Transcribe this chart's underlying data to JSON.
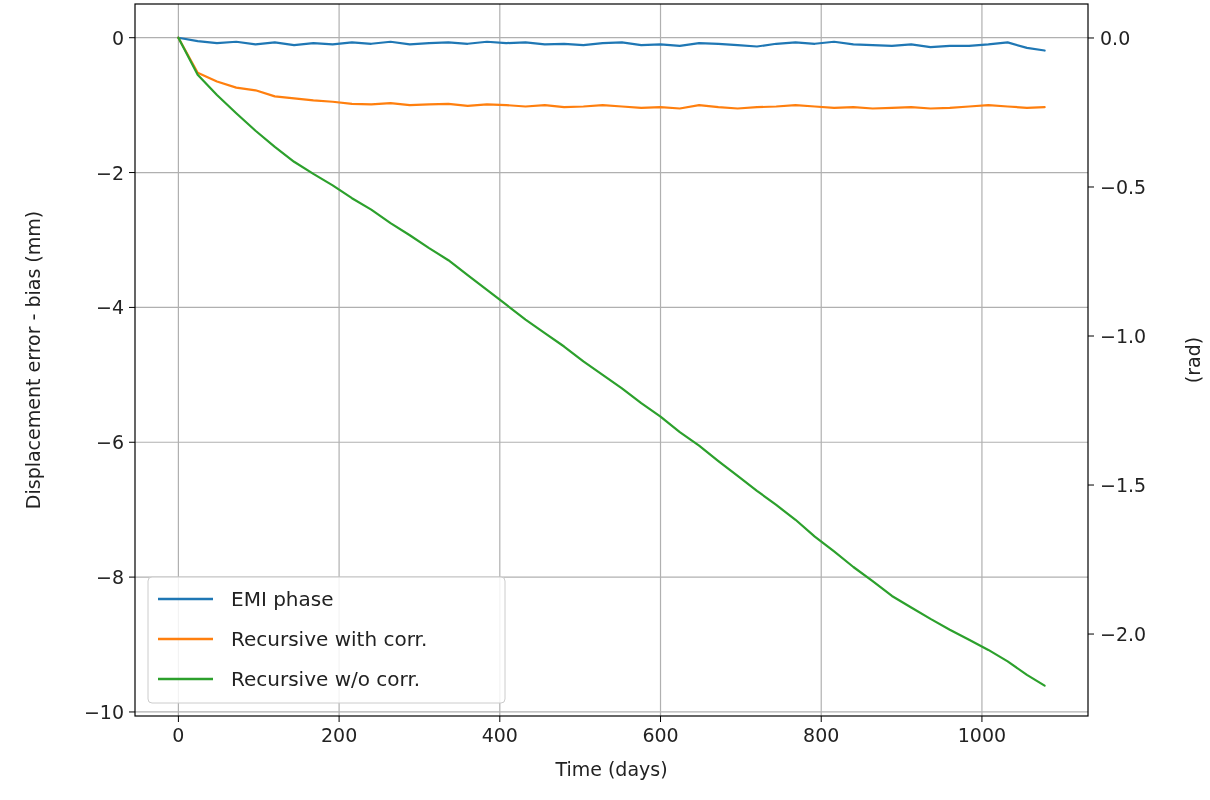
{
  "chart_data": {
    "type": "line",
    "xlabel": "Time (days)",
    "ylabel": "Displacement error - bias (mm)",
    "y2label": "(rad)",
    "x": [
      0,
      24,
      48,
      72,
      96,
      120,
      144,
      168,
      192,
      216,
      240,
      264,
      288,
      312,
      336,
      360,
      384,
      408,
      432,
      456,
      480,
      504,
      528,
      552,
      576,
      600,
      624,
      648,
      672,
      696,
      720,
      744,
      768,
      792,
      816,
      840,
      864,
      888,
      912,
      936,
      960,
      984,
      1008,
      1032,
      1056,
      1078
    ],
    "series": [
      {
        "name": "EMI phase",
        "color": "#1f77b4",
        "values": [
          0,
          -0.05,
          -0.08,
          -0.06,
          -0.1,
          -0.07,
          -0.11,
          -0.08,
          -0.1,
          -0.07,
          -0.09,
          -0.06,
          -0.1,
          -0.08,
          -0.07,
          -0.09,
          -0.06,
          -0.08,
          -0.07,
          -0.1,
          -0.09,
          -0.11,
          -0.08,
          -0.07,
          -0.11,
          -0.1,
          -0.12,
          -0.08,
          -0.09,
          -0.11,
          -0.13,
          -0.09,
          -0.07,
          -0.09,
          -0.06,
          -0.1,
          -0.11,
          -0.12,
          -0.1,
          -0.14,
          -0.12,
          -0.12,
          -0.1,
          -0.07,
          -0.15,
          -0.19
        ]
      },
      {
        "name": "Recursive with corr.",
        "color": "#ff7f0e",
        "values": [
          0,
          -0.52,
          -0.65,
          -0.74,
          -0.78,
          -0.87,
          -0.9,
          -0.93,
          -0.95,
          -0.98,
          -0.99,
          -0.97,
          -1.0,
          -0.99,
          -0.98,
          -1.01,
          -0.99,
          -1.0,
          -1.02,
          -1.0,
          -1.03,
          -1.02,
          -1.0,
          -1.02,
          -1.04,
          -1.03,
          -1.05,
          -1.0,
          -1.03,
          -1.05,
          -1.03,
          -1.02,
          -1.0,
          -1.02,
          -1.04,
          -1.03,
          -1.05,
          -1.04,
          -1.03,
          -1.05,
          -1.04,
          -1.02,
          -1.0,
          -1.02,
          -1.04,
          -1.03
        ]
      },
      {
        "name": "Recursive w/o corr.",
        "color": "#2ca02c",
        "values": [
          0,
          -0.55,
          -0.85,
          -1.12,
          -1.38,
          -1.62,
          -1.84,
          -2.02,
          -2.19,
          -2.38,
          -2.55,
          -2.75,
          -2.93,
          -3.12,
          -3.3,
          -3.52,
          -3.74,
          -3.96,
          -4.18,
          -4.38,
          -4.58,
          -4.8,
          -5.0,
          -5.2,
          -5.42,
          -5.62,
          -5.85,
          -6.05,
          -6.28,
          -6.5,
          -6.72,
          -6.93,
          -7.15,
          -7.4,
          -7.62,
          -7.85,
          -8.06,
          -8.28,
          -8.45,
          -8.62,
          -8.78,
          -8.93,
          -9.08,
          -9.25,
          -9.45,
          -9.61
        ]
      }
    ],
    "xlim": [
      -54,
      1132
    ],
    "xticks": [
      0,
      200,
      400,
      600,
      800,
      1000
    ],
    "ylim": [
      -10.06,
      0.5
    ],
    "yticks": [
      0,
      {
        "value": -2,
        "label": "−2"
      },
      {
        "value": -4,
        "label": "−4"
      },
      {
        "value": -6,
        "label": "−6"
      },
      {
        "value": -8,
        "label": "−8"
      },
      {
        "value": -10,
        "label": "−10"
      }
    ],
    "y2lim": [
      -2.275,
      0.114
    ],
    "y2ticks": [
      {
        "value": 0,
        "label": "0.0"
      },
      {
        "value": -0.5,
        "label": "−0.5"
      },
      {
        "value": -1,
        "label": "−1.0"
      },
      {
        "value": -1.5,
        "label": "−1.5"
      },
      {
        "value": -2,
        "label": "−2.0"
      }
    ],
    "grid": true,
    "legend": "bottom left"
  }
}
